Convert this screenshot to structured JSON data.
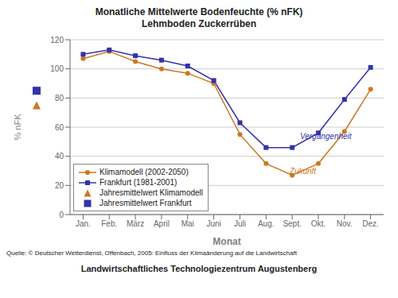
{
  "chart_data": {
    "type": "line",
    "title": "Monatliche Mittelwerte Bodenfeuchte (% nFK)",
    "subtitle": "Lehmboden Zuckerrüben",
    "xlabel": "Monat",
    "ylabel": "% nFK",
    "categories": [
      "Jan.",
      "Feb.",
      "März",
      "April",
      "Mai",
      "Juni",
      "Juli",
      "Aug.",
      "Sept.",
      "Okt.",
      "Nov.",
      "Dez."
    ],
    "series": [
      {
        "name": "Klimamodell (2002-2050)",
        "color": "#CC7722",
        "marker": "circle",
        "values": [
          107,
          112,
          105,
          100,
          97,
          90,
          55,
          35,
          27,
          35,
          57,
          86
        ]
      },
      {
        "name": "Frankfurt (1981-2001)",
        "color": "#3333AA",
        "marker": "square",
        "values": [
          110,
          113,
          109,
          106,
          102,
          92,
          63,
          46,
          46,
          56,
          79,
          101
        ]
      }
    ],
    "annual_means": [
      {
        "name": "Jahresmittelwert Klimamodell",
        "color": "#CC7722",
        "marker": "triangle",
        "value": 75
      },
      {
        "name": "Jahresmittelwert Frankfurt",
        "color": "#3333AA",
        "marker": "square",
        "value": 85
      }
    ],
    "annotations": [
      {
        "text": "Vergangenheit",
        "x": 8.3,
        "y": 52,
        "color": "#3333AA"
      },
      {
        "text": "Zukunft",
        "x": 7.9,
        "y": 28,
        "color": "#CC7722"
      }
    ],
    "ylim": [
      0,
      120
    ],
    "yticks": [
      0,
      20,
      40,
      60,
      80,
      100,
      120
    ],
    "grid": true,
    "legend": "lower left",
    "source": "Quelle: © Deutscher Wetterdienst, Offenbach, 2005: Einfluss der Klimaänderung auf die Landwirtschaft",
    "footer": "Landwirtschaftliches Technologiezentrum Augustenberg"
  }
}
